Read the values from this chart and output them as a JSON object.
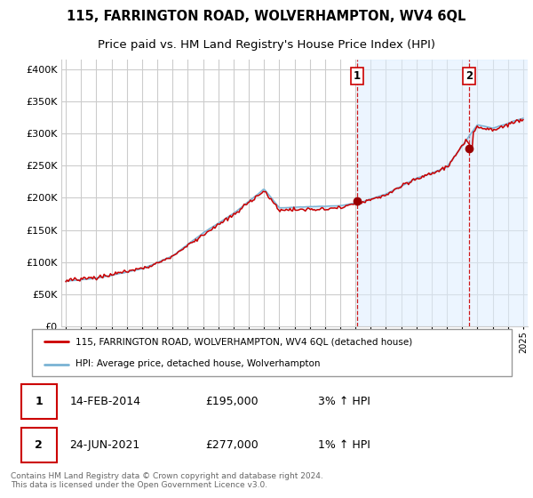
{
  "title": "115, FARRINGTON ROAD, WOLVERHAMPTON, WV4 6QL",
  "subtitle": "Price paid vs. HM Land Registry's House Price Index (HPI)",
  "title_fontsize": 10.5,
  "subtitle_fontsize": 9.5,
  "ylabel_ticks": [
    "£0",
    "£50K",
    "£100K",
    "£150K",
    "£200K",
    "£250K",
    "£300K",
    "£350K",
    "£400K"
  ],
  "ytick_values": [
    0,
    50000,
    100000,
    150000,
    200000,
    250000,
    300000,
    350000,
    400000
  ],
  "ylim": [
    0,
    415000
  ],
  "xlim_start": 1994.7,
  "xlim_end": 2025.3,
  "background_color": "#ffffff",
  "plot_bg_color": "#ffffff",
  "grid_color": "#cccccc",
  "line_color_property": "#cc0000",
  "line_color_hpi": "#7ab3d4",
  "fill_color": "#ddeeff",
  "marker_color": "#990000",
  "dashed_line_color": "#cc0000",
  "sale1_date": 2014.12,
  "sale1_value": 195000,
  "sale2_date": 2021.48,
  "sale2_value": 277000,
  "legend_entry1": "115, FARRINGTON ROAD, WOLVERHAMPTON, WV4 6QL (detached house)",
  "legend_entry2": "HPI: Average price, detached house, Wolverhampton",
  "footer": "Contains HM Land Registry data © Crown copyright and database right 2024.\nThis data is licensed under the Open Government Licence v3.0.",
  "table_rows": [
    {
      "num": "1",
      "date": "14-FEB-2014",
      "price": "£195,000",
      "hpi": "3% ↑ HPI"
    },
    {
      "num": "2",
      "date": "24-JUN-2021",
      "price": "£277,000",
      "hpi": "1% ↑ HPI"
    }
  ]
}
